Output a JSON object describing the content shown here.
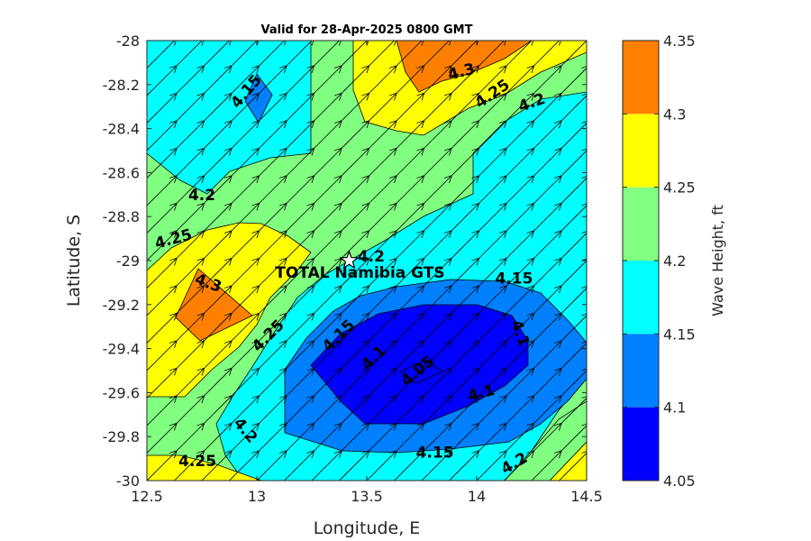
{
  "chart_data": {
    "type": "contour",
    "title": "Valid for 28-Apr-2025 0800 GMT",
    "xlabel": "Longitude, E",
    "ylabel": "Latitude, S",
    "xlim": [
      12.5,
      14.5
    ],
    "ylim": [
      -30,
      -28
    ],
    "xticks": [
      "12.5",
      "13",
      "13.5",
      "14",
      "14.5"
    ],
    "yticks": [
      "-28",
      "-28.2",
      "-28.4",
      "-28.6",
      "-28.8",
      "-29",
      "-29.2",
      "-29.4",
      "-29.6",
      "-29.8",
      "-30"
    ],
    "colorbar": {
      "label": "Wave Height, ft",
      "levels": [
        4.05,
        4.1,
        4.15,
        4.2,
        4.25,
        4.3,
        4.35
      ],
      "tick_labels": [
        "4.05",
        "4.1",
        "4.15",
        "4.2",
        "4.25",
        "4.3",
        "4.35"
      ],
      "colors": [
        "#0000ff",
        "#0080ff",
        "#00ffff",
        "#80ff80",
        "#ffff00",
        "#ff8000"
      ]
    },
    "site": {
      "name": "TOTAL Namibia GTS",
      "lon": 13.42,
      "lat": -29.0
    },
    "contour_labels": [
      {
        "text": "4.15",
        "lon": 12.95,
        "lat": -28.23,
        "angle": -50
      },
      {
        "text": "4.3",
        "lon": 13.93,
        "lat": -28.14,
        "angle": -15
      },
      {
        "text": "4.25",
        "lon": 14.07,
        "lat": -28.24,
        "angle": -35
      },
      {
        "text": "4.2",
        "lon": 14.25,
        "lat": -28.28,
        "angle": -20
      },
      {
        "text": "4.2",
        "lon": 12.75,
        "lat": -28.7,
        "angle": 0
      },
      {
        "text": "4.25",
        "lon": 12.62,
        "lat": -28.9,
        "angle": -15
      },
      {
        "text": "4.2",
        "lon": 13.52,
        "lat": -28.98,
        "angle": 0
      },
      {
        "text": "4.3",
        "lon": 12.78,
        "lat": -29.1,
        "angle": 20
      },
      {
        "text": "4.15",
        "lon": 14.17,
        "lat": -29.08,
        "angle": 0
      },
      {
        "text": "4.25",
        "lon": 13.05,
        "lat": -29.34,
        "angle": -45
      },
      {
        "text": "4.15",
        "lon": 13.37,
        "lat": -29.34,
        "angle": -45
      },
      {
        "text": "4.1",
        "lon": 13.53,
        "lat": -29.44,
        "angle": -45
      },
      {
        "text": "4.05",
        "lon": 13.73,
        "lat": -29.5,
        "angle": -40
      },
      {
        "text": "4.1",
        "lon": 14.2,
        "lat": -29.33,
        "angle": 70
      },
      {
        "text": "4.1",
        "lon": 14.02,
        "lat": -29.6,
        "angle": -15
      },
      {
        "text": "4.2",
        "lon": 12.95,
        "lat": -29.77,
        "angle": 50
      },
      {
        "text": "4.15",
        "lon": 13.81,
        "lat": -29.87,
        "angle": 0
      },
      {
        "text": "4.25",
        "lon": 12.73,
        "lat": -29.91,
        "angle": 0
      },
      {
        "text": "4.2",
        "lon": 14.17,
        "lat": -29.92,
        "angle": -30
      }
    ],
    "arrow_direction_deg_from_east": 45
  }
}
